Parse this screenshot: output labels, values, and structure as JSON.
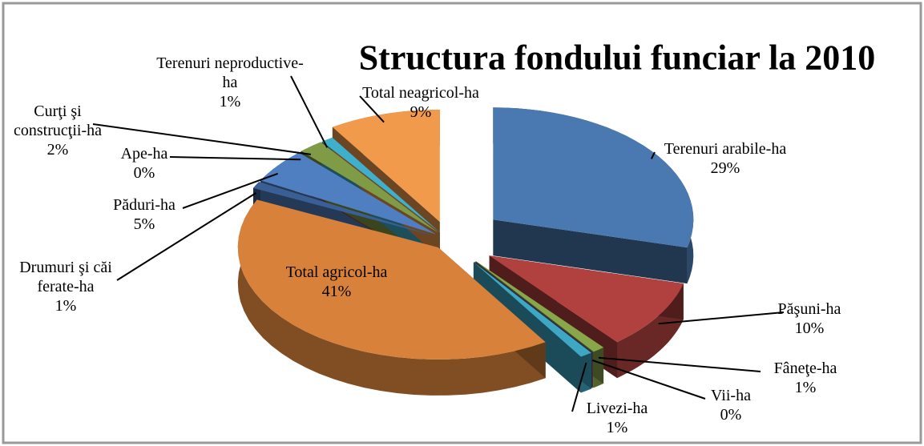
{
  "chart_data": {
    "type": "pie",
    "title": "Structura fondului funciar la 2010",
    "categories": [
      "Terenuri arabile-ha",
      "Păşuni-ha",
      "Fâneţe-ha",
      "Vii-ha",
      "Livezi-ha",
      "Total agricol-ha",
      "Drumuri şi căi ferate-ha",
      "Păduri-ha",
      "Ape-ha",
      "Curţi şi construcţii-ha",
      "Terenuri neproductive-ha",
      "Total neagricol-ha"
    ],
    "values": [
      29,
      10,
      1,
      0,
      1,
      41,
      1,
      5,
      0,
      2,
      1,
      9
    ],
    "value_labels": [
      "29%",
      "10%",
      "1%",
      "0%",
      "1%",
      "41%",
      "1%",
      "5%",
      "0%",
      "2%",
      "1%",
      "9%"
    ],
    "colors": [
      "#4a78b0",
      "#b0413e",
      "#8aa64b",
      "#6e4f95",
      "#3ea8c4",
      "#d8813a",
      "#3a5f94",
      "#4f7fc0",
      "#a33b38",
      "#7f9b45",
      "#3fb0cc",
      "#f29a4c"
    ]
  }
}
